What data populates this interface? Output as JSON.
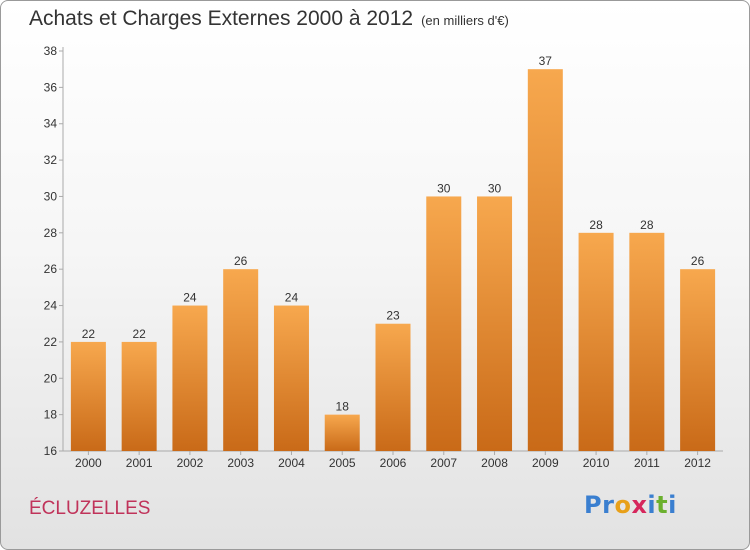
{
  "header": {
    "title": "Achats et Charges Externes 2000 à 2012",
    "subtitle": "(en milliers d'€)"
  },
  "footer": {
    "commune": "ÉCLUZELLES",
    "logo_letters": [
      "P",
      "r",
      "o",
      "x",
      "i",
      "t",
      "i"
    ],
    "logo_colors": [
      "#3a7fd0",
      "#3a7fd0",
      "#e8a019",
      "#d6265c",
      "#3a7fd0",
      "#6bb02e",
      "#3a7fd0"
    ]
  },
  "chart_data": {
    "type": "bar",
    "title": "Achats et Charges Externes 2000 à 2012",
    "subtitle": "(en milliers d'€)",
    "categories": [
      "2000",
      "2001",
      "2002",
      "2003",
      "2004",
      "2005",
      "2006",
      "2007",
      "2008",
      "2009",
      "2010",
      "2011",
      "2012"
    ],
    "values": [
      22,
      22,
      24,
      26,
      24,
      18,
      23,
      30,
      30,
      37,
      28,
      28,
      26
    ],
    "ylim": [
      16,
      38
    ],
    "yticks": [
      16,
      18,
      20,
      22,
      24,
      26,
      28,
      30,
      32,
      34,
      36,
      38
    ],
    "xlabel": "",
    "ylabel": "",
    "grid": false,
    "bar_color_top": "#f7a84e",
    "bar_color_bottom": "#c96a18"
  }
}
